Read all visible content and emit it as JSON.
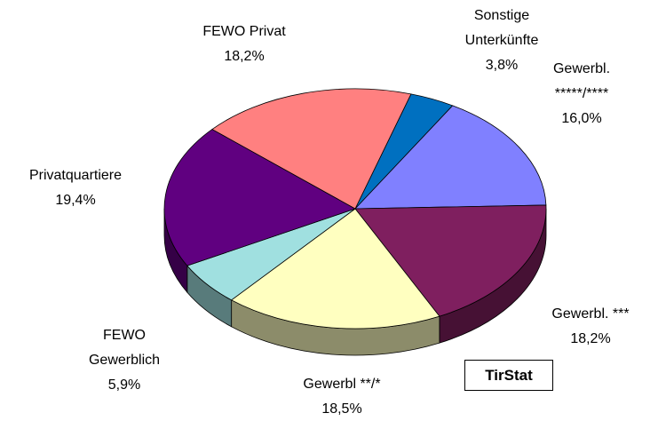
{
  "chart_data": {
    "type": "pie3d",
    "categories": [
      "Sonstige Unterkünfte",
      "Gewerbl. *****/****",
      "Gewerbl. ***",
      "Gewerbl **/*",
      "FEWO Gewerblich",
      "Privatquartiere",
      "FEWO Privat"
    ],
    "values": [
      3.8,
      16.0,
      18.2,
      18.5,
      5.9,
      19.4,
      18.2
    ],
    "value_labels": [
      "3,8%",
      "16,0%",
      "18,2%",
      "18,5%",
      "5,9%",
      "19,4%",
      "18,2%"
    ],
    "colors": [
      "#0070c0",
      "#8080ff",
      "#7f1f5f",
      "#ffffc0",
      "#a0e0e0",
      "#600080",
      "#ff8080"
    ],
    "annotation": "TirStat"
  }
}
